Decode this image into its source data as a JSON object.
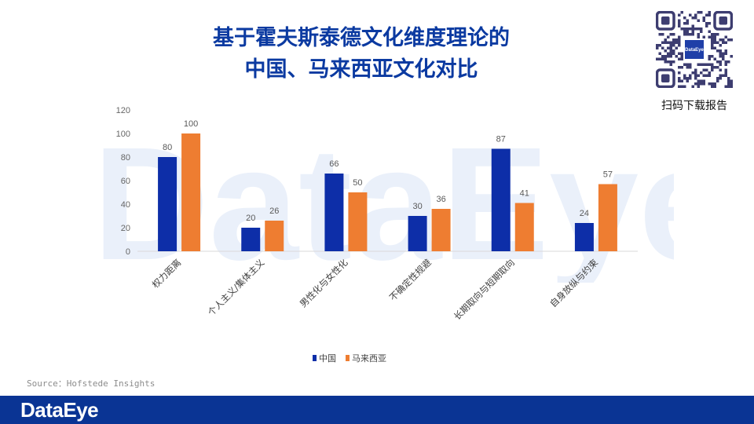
{
  "title_line1": "基于霍夫斯泰德文化维度理论的",
  "title_line2": "中国、马来西亚文化对比",
  "qr": {
    "caption": "扫码下载报告",
    "center_text": "DataEye"
  },
  "watermark": "DataEye",
  "source": "Source：Hofstede Insights",
  "footer": {
    "logo": "DataEye",
    "color": "#0a3494"
  },
  "chart_data": {
    "type": "bar",
    "title": "基于霍夫斯泰德文化维度理论的中国、马来西亚文化对比",
    "categories": [
      "权力距离",
      "个人主义/集体主义",
      "男性化与女性化",
      "不确定性规避",
      "长期取向与短期取向",
      "自身放纵与约束"
    ],
    "series": [
      {
        "name": "中国",
        "color": "#0d2ea8",
        "values": [
          80,
          20,
          66,
          30,
          87,
          24
        ]
      },
      {
        "name": "马来西亚",
        "color": "#ee7d31",
        "values": [
          100,
          26,
          50,
          36,
          41,
          57
        ]
      }
    ],
    "ylim": [
      0,
      120
    ],
    "yticks": [
      0,
      20,
      40,
      60,
      80,
      100,
      120
    ],
    "xlabel": "",
    "ylabel": "",
    "grid": false,
    "legend": "bottom"
  }
}
